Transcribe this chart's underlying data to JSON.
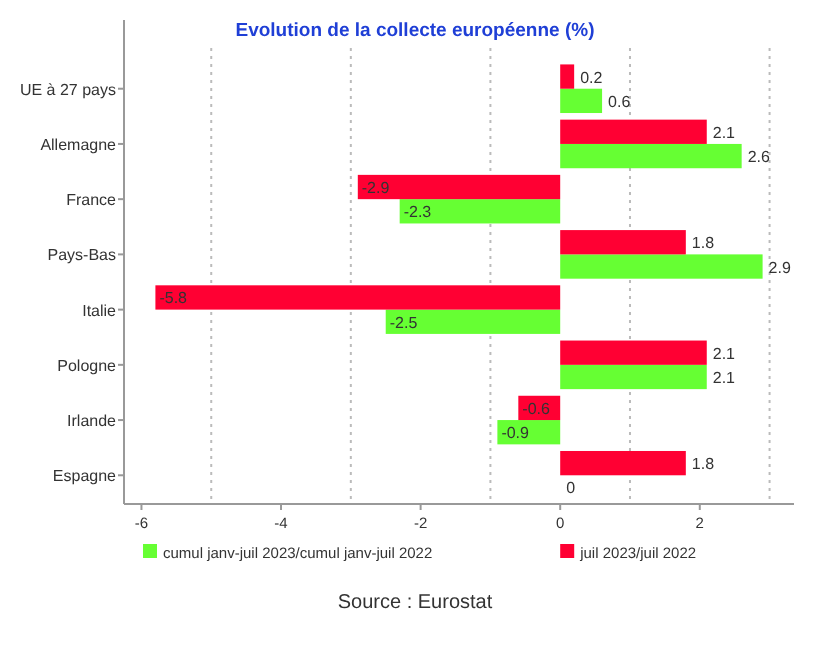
{
  "chart_data": {
    "type": "bar",
    "orientation": "horizontal",
    "title": "Evolution de la collecte européenne (%)",
    "categories": [
      "UE à 27 pays",
      "Allemagne",
      "France",
      "Pays-Bas",
      "Italie",
      "Pologne",
      "Irlande",
      "Espagne"
    ],
    "series": [
      {
        "name": "cumul janv-juil 2023/cumul janv-juil 2022",
        "color": "#66ff33",
        "values": [
          0.6,
          2.6,
          -2.3,
          2.9,
          -2.5,
          2.1,
          -0.9,
          0
        ]
      },
      {
        "name": "juil 2023/juil 2022",
        "color": "#ff0033",
        "values": [
          0.2,
          2.1,
          -2.9,
          1.8,
          -5.8,
          2.1,
          -0.6,
          1.8
        ]
      }
    ],
    "xlim": [
      -6.25,
      3.35
    ],
    "xticks": [
      -6,
      {
        "value": -5,
        "label": null
      },
      -4,
      {
        "value": -3,
        "label": null
      },
      -2,
      {
        "value": -1,
        "label": null
      },
      0,
      {
        "value": 1,
        "label": null
      },
      2,
      {
        "value": 3,
        "label": null
      }
    ],
    "grid": "x",
    "data_labels": true,
    "legend": "bottom",
    "annotations": [
      "Source : Eurostat"
    ]
  }
}
